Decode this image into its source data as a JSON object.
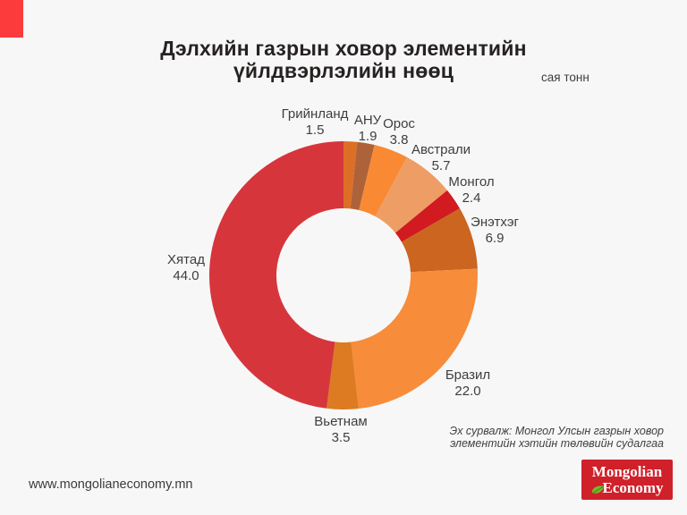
{
  "page": {
    "background": "#f7f7f7"
  },
  "branding": {
    "corner_color": "#fc3b3c"
  },
  "header": {
    "title_line1": "Дэлхийн газрын ховор элементийн",
    "title_line2": "үйлдвэрлэлийн нөөц",
    "unit_label": "сая тонн"
  },
  "chart_data": {
    "type": "pie",
    "subtype": "donut",
    "title": "Дэлхийн газрын ховор элементийн үйлдвэрлэлийн нөөц",
    "unit": "сая тонн",
    "start_angle_deg": 0,
    "direction": "clockwise",
    "legend_position": "labels-outside",
    "total": 91.7,
    "segments": [
      {
        "label": "Грийнланд",
        "value": 1.5,
        "color": "#DD6E26"
      },
      {
        "label": "АНУ",
        "value": 1.9,
        "color": "#AE6239"
      },
      {
        "label": "Орос",
        "value": 3.8,
        "color": "#F98A33"
      },
      {
        "label": "Австрали",
        "value": 5.7,
        "color": "#EE9D64"
      },
      {
        "label": "Монгол",
        "value": 2.4,
        "color": "#D11B20"
      },
      {
        "label": "Энэтхэг",
        "value": 6.9,
        "color": "#CB651F"
      },
      {
        "label": "Бразил",
        "value": 22.0,
        "color": "#F78C3A"
      },
      {
        "label": "Вьетнам",
        "value": 3.5,
        "color": "#DC7B22"
      },
      {
        "label": "Хятад",
        "value": 44.0,
        "color": "#D7353C"
      }
    ]
  },
  "footer": {
    "website": "www.mongolianeconomy.mn",
    "source_line1": "Эх сурвалж: Монгол Улсын газрын ховор",
    "source_line2": "элементийн хэтийн төлөвийн судалгаа",
    "logo": {
      "line1": "Mongolian",
      "line2": "Economy",
      "background": "#d0202a",
      "leaf_color": "#76b82a",
      "leaf_vein_color": "#3e7a28"
    }
  }
}
